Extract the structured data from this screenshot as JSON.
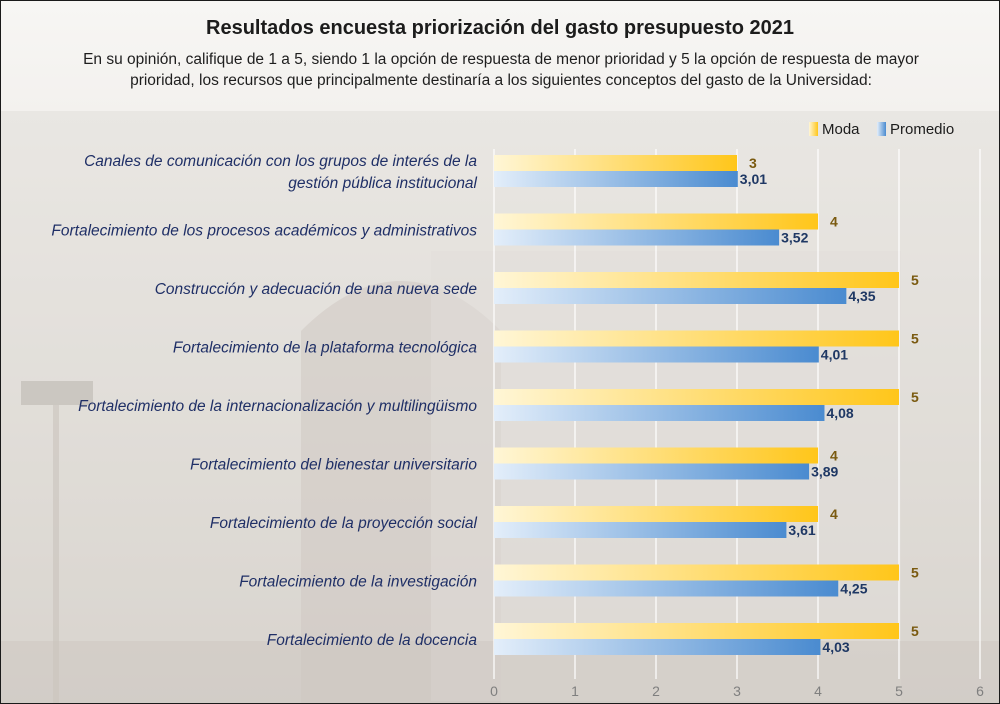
{
  "colors": {
    "moda": "#ffcc33",
    "promedio": "#5b9bd5",
    "category_text": "#1f2f66",
    "moda_label": "#7a5a10",
    "promedio_label": "#1f3864"
  },
  "chart_data": {
    "type": "bar",
    "orientation": "horizontal",
    "title": "Resultados encuesta priorización del gasto presupuesto 2021",
    "subtitle": "En su opinión, califique de 1 a 5, siendo 1 la opción de respuesta de menor prioridad y 5 la opción de respuesta de mayor prioridad, los recursos que principalmente destinaría a los siguientes conceptos del gasto de la Universidad:",
    "categories": [
      [
        "Canales de comunicación con los grupos de interés de la",
        "gestión pública institucional"
      ],
      [
        "Fortalecimiento de los procesos académicos y administrativos"
      ],
      [
        "Construcción y adecuación de una nueva sede"
      ],
      [
        "Fortalecimiento de la plataforma tecnológica"
      ],
      [
        "Fortalecimiento de la internacionalización y multilingüismo"
      ],
      [
        "Fortalecimiento del bienestar universitario"
      ],
      [
        "Fortalecimiento de la proyección social"
      ],
      [
        "Fortalecimiento de la investigación"
      ],
      [
        "Fortalecimiento de la docencia"
      ]
    ],
    "series": [
      {
        "name": "Moda",
        "values": [
          3,
          4,
          5,
          5,
          5,
          4,
          4,
          5,
          5
        ],
        "labels": [
          "3",
          "4",
          "5",
          "5",
          "5",
          "4",
          "4",
          "5",
          "5"
        ]
      },
      {
        "name": "Promedio",
        "values": [
          3.01,
          3.52,
          4.35,
          4.01,
          4.08,
          3.89,
          3.61,
          4.25,
          4.03
        ],
        "labels": [
          "3,01",
          "3,52",
          "4,35",
          "4,01",
          "4,08",
          "3,89",
          "3,61",
          "4,25",
          "4,03"
        ]
      }
    ],
    "xlim": [
      0,
      6
    ],
    "xticks": [
      "0",
      "1",
      "2",
      "3",
      "4",
      "5",
      "6"
    ],
    "grid": true,
    "legend_position": "top-right"
  }
}
